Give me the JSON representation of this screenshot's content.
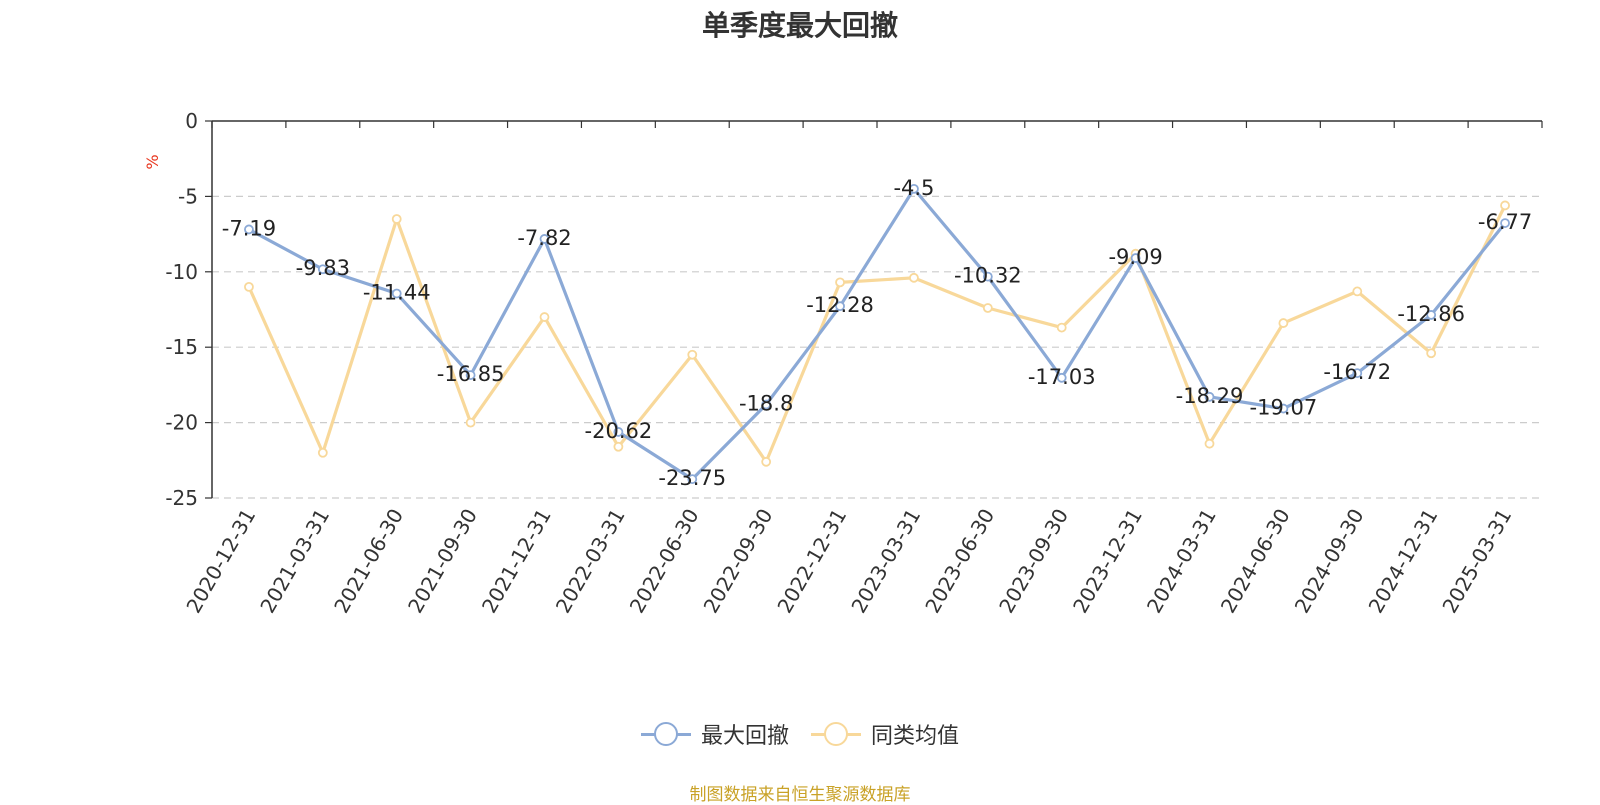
{
  "title": "单季度最大回撤",
  "source_note": "制图数据来自恒生聚源数据库",
  "colors": {
    "series1": "#8ba9d6",
    "series2": "#f8d89a",
    "unit": "#e8341c",
    "source": "#c9a227"
  },
  "chart_data": {
    "type": "line",
    "title": "单季度最大回撤",
    "ylabel": "%",
    "ylim": [
      -25,
      0
    ],
    "yticks": [
      0,
      -5,
      -10,
      -15,
      -20,
      -25
    ],
    "grid": true,
    "legend_position": "bottom",
    "categories": [
      "2020-12-31",
      "2021-03-31",
      "2021-06-30",
      "2021-09-30",
      "2021-12-31",
      "2022-03-31",
      "2022-06-30",
      "2022-09-30",
      "2022-12-31",
      "2023-03-31",
      "2023-06-30",
      "2023-09-30",
      "2023-12-31",
      "2024-03-31",
      "2024-06-30",
      "2024-09-30",
      "2024-12-31",
      "2025-03-31"
    ],
    "series": [
      {
        "name": "最大回撤",
        "values": [
          -7.19,
          -9.83,
          -11.44,
          -16.85,
          -7.82,
          -20.62,
          -23.75,
          -18.8,
          -12.28,
          -4.5,
          -10.32,
          -17.03,
          -9.09,
          -18.29,
          -19.07,
          -16.72,
          -12.86,
          -6.77
        ],
        "labels": [
          "-7.19",
          "-9.83",
          "-11.44",
          "-16.85",
          "-7.82",
          "-20.62",
          "-23.75",
          "-18.8",
          "-12.28",
          "-4.5",
          "-10.32",
          "-17.03",
          "-9.09",
          "-18.29",
          "-19.07",
          "-16.72",
          "-12.86",
          "-6.77"
        ]
      },
      {
        "name": "同类均值",
        "values": [
          -11.0,
          -22.0,
          -6.5,
          -20.0,
          -13.0,
          -21.6,
          -15.5,
          -22.6,
          -10.7,
          -10.4,
          -12.4,
          -13.7,
          -8.8,
          -21.4,
          -13.4,
          -11.3,
          -15.4,
          -5.6
        ]
      }
    ]
  }
}
